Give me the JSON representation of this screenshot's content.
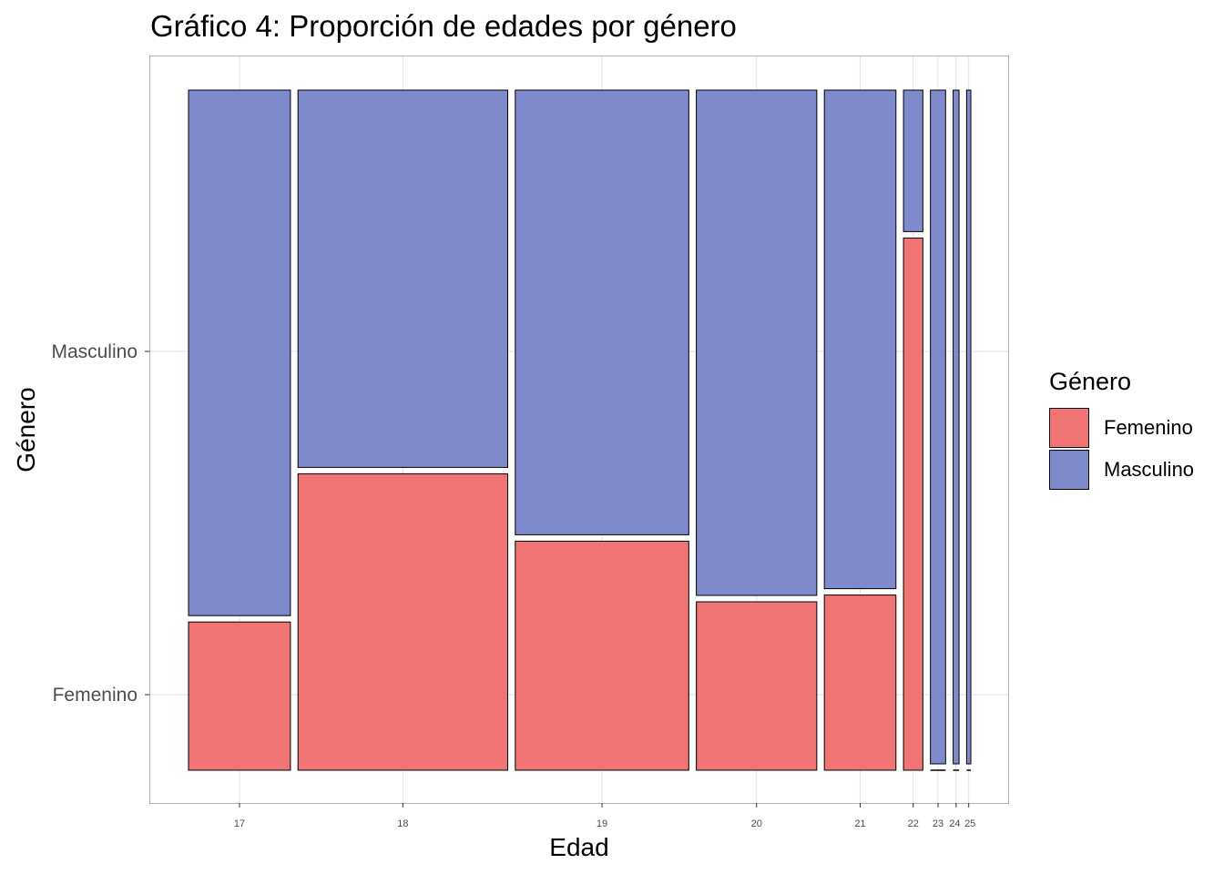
{
  "chart_data": {
    "type": "mosaic",
    "title": "Gráfico 4: Proporción de edades por género",
    "xlabel": "Edad",
    "ylabel": "Género",
    "categories": [
      "17",
      "18",
      "19",
      "20",
      "21",
      "22",
      "23",
      "24",
      "25"
    ],
    "category_share": [
      0.121,
      0.249,
      0.206,
      0.143,
      0.085,
      0.023,
      0.018,
      0.007,
      0.005
    ],
    "series": [
      {
        "name": "Femenino",
        "color": "#F07474",
        "values": [
          0.22,
          0.44,
          0.34,
          0.25,
          0.26,
          0.79,
          0.0,
          0.0,
          0.0
        ]
      },
      {
        "name": "Masculino",
        "color": "#7F8ACD",
        "values": [
          0.78,
          0.56,
          0.66,
          0.75,
          0.74,
          0.21,
          1.0,
          1.0,
          1.0
        ]
      }
    ],
    "y_ticks": [
      "Femenino",
      "Masculino"
    ],
    "legend": {
      "title": "Género",
      "position": "right"
    },
    "grid": true
  }
}
